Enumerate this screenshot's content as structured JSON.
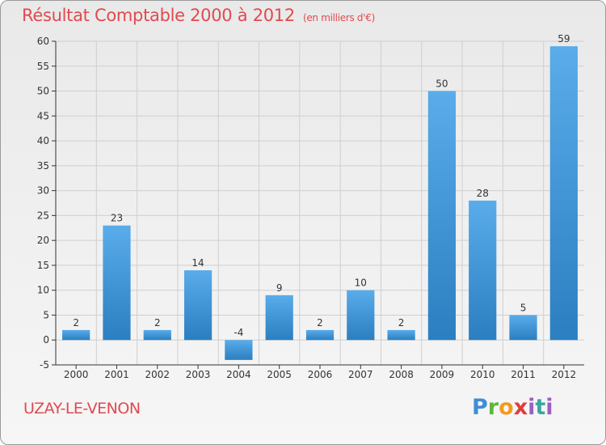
{
  "chart_data": {
    "type": "bar",
    "title": "Résultat Comptable 2000 à 2012",
    "unit_note": "(en milliers d'€)",
    "categories": [
      "2000",
      "2001",
      "2002",
      "2003",
      "2004",
      "2005",
      "2006",
      "2007",
      "2008",
      "2009",
      "2010",
      "2011",
      "2012"
    ],
    "values": [
      2,
      23,
      2,
      14,
      -4,
      9,
      2,
      10,
      2,
      50,
      28,
      5,
      59
    ],
    "ylim": [
      -5,
      60
    ],
    "yticks": [
      -5,
      0,
      5,
      10,
      15,
      20,
      25,
      30,
      35,
      40,
      45,
      50,
      55,
      60
    ],
    "grid": true,
    "xlabel": "",
    "ylabel": ""
  },
  "commune": "UZAY-LE-VENON",
  "logo": {
    "letters": [
      "P",
      "r",
      "o",
      "x",
      "i",
      "t",
      "i"
    ]
  },
  "colors": {
    "bar_light": "#5aacea",
    "bar_dark": "#2b7fc0",
    "title": "#e14a4f",
    "grid": "#cfcfcf"
  }
}
